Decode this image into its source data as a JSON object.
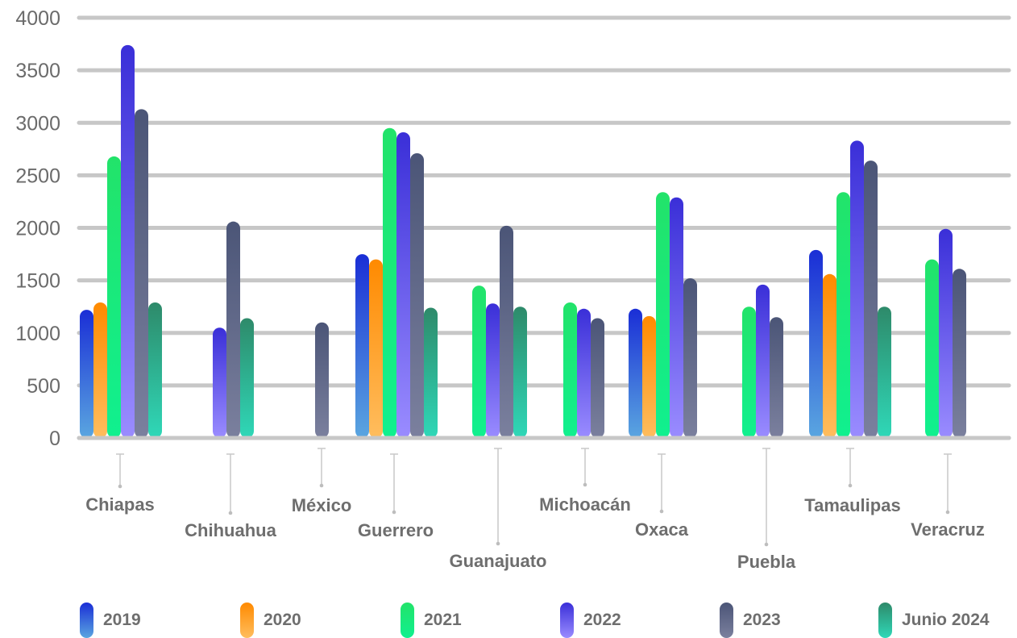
{
  "chart_data": {
    "type": "bar",
    "title": "",
    "xlabel": "",
    "ylabel": "",
    "ylim": [
      0,
      4000
    ],
    "yticks": [
      0,
      500,
      1000,
      1500,
      2000,
      2500,
      3000,
      3500,
      4000
    ],
    "grid": true,
    "legend_position": "bottom",
    "categories": [
      "Chiapas",
      "Chihuahua",
      "México",
      "Guerrero",
      "Guanajuato",
      "Michoacán",
      "Oxaca",
      "Puebla",
      "Tamaulipas",
      "Veracruz"
    ],
    "series": [
      {
        "name": "2019",
        "color_top": "#1a2ed6",
        "color_bottom": "#5aa6e0",
        "values": [
          1220,
          null,
          null,
          1750,
          null,
          null,
          1230,
          null,
          1790,
          null
        ]
      },
      {
        "name": "2020",
        "color_top": "#ff8a00",
        "color_bottom": "#ffbd5e",
        "values": [
          1290,
          null,
          null,
          1700,
          null,
          null,
          1160,
          null,
          1560,
          null
        ]
      },
      {
        "name": "2021",
        "color_top": "#22e36a",
        "color_bottom": "#10f08f",
        "values": [
          2680,
          null,
          null,
          2950,
          1450,
          1290,
          2340,
          1250,
          2340,
          1700
        ]
      },
      {
        "name": "2022",
        "color_top": "#3a2fd8",
        "color_bottom": "#9a8cff",
        "values": [
          3740,
          1050,
          null,
          2910,
          1280,
          1230,
          2290,
          1460,
          2830,
          1990
        ]
      },
      {
        "name": "2023",
        "color_top": "#4b5577",
        "color_bottom": "#7b809e",
        "values": [
          3130,
          2060,
          1100,
          2710,
          2020,
          1140,
          1520,
          1150,
          2640,
          1610
        ]
      },
      {
        "name": "Junio 2024",
        "color_top": "#2e8a6a",
        "color_bottom": "#2fd8b8",
        "values": [
          1290,
          1140,
          null,
          1240,
          1250,
          null,
          null,
          null,
          1250,
          null
        ]
      }
    ]
  }
}
